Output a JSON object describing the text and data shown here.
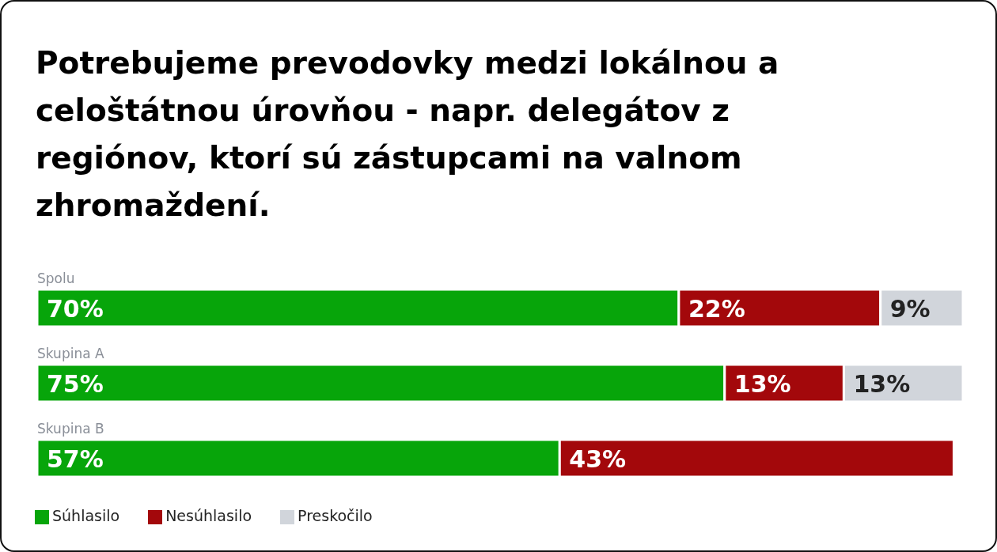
{
  "chart_data": {
    "type": "bar",
    "orientation": "horizontal",
    "stacked": true,
    "tick_labels": false,
    "title": "Potrebujeme prevodovky medzi lokálnou a celoštátnou úrovňou - napr. delegátov z regiónov, ktorí sú zástupcami na valnom zhromaždení.",
    "categories": [
      "Spolu",
      "Skupina A",
      "Skupina B"
    ],
    "series": [
      {
        "name": "Súhlasilo",
        "color": "#07a50a",
        "values": [
          70,
          75,
          57
        ],
        "value_labels": [
          "70%",
          "75%",
          "57%"
        ]
      },
      {
        "name": "Nesúhlasilo",
        "color": "#a3080b",
        "values": [
          22,
          13,
          43
        ],
        "value_labels": [
          "22%",
          "13%",
          "43%"
        ]
      },
      {
        "name": "Preskočilo",
        "color": "#d1d5db",
        "values": [
          9,
          13,
          0
        ],
        "value_labels": [
          "9%",
          "13%",
          null
        ]
      }
    ],
    "legend": "bottom",
    "grid": false
  }
}
